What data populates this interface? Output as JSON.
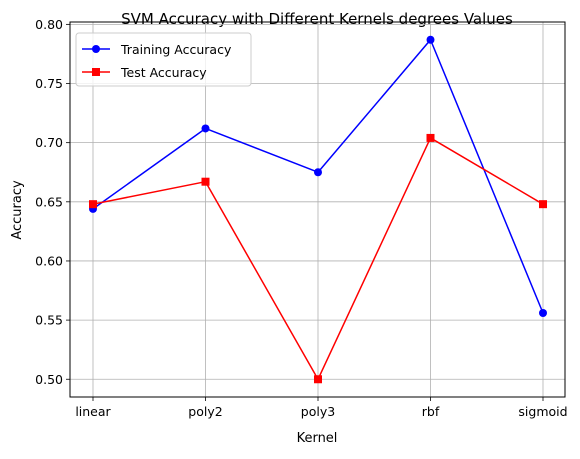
{
  "chart_data": {
    "type": "line",
    "title": "SVM Accuracy with Different Kernels degrees Values",
    "xlabel": "Kernel",
    "ylabel": "Accuracy",
    "categories": [
      "linear",
      "poly2",
      "poly3",
      "rbf",
      "sigmoid"
    ],
    "ylim": [
      0.485,
      0.802
    ],
    "yticks": [
      0.5,
      0.55,
      0.6,
      0.65,
      0.7,
      0.75,
      0.8
    ],
    "ytick_labels": [
      "0.50",
      "0.55",
      "0.60",
      "0.65",
      "0.70",
      "0.75",
      "0.80"
    ],
    "grid": true,
    "legend_position": "upper-left",
    "series": [
      {
        "name": "Training Accuracy",
        "values": [
          0.644,
          0.712,
          0.675,
          0.787,
          0.556
        ],
        "color": "#0000ff",
        "marker": "circle"
      },
      {
        "name": "Test Accuracy",
        "values": [
          0.648,
          0.667,
          0.5,
          0.704,
          0.648
        ],
        "color": "#ff0000",
        "marker": "square"
      }
    ]
  }
}
